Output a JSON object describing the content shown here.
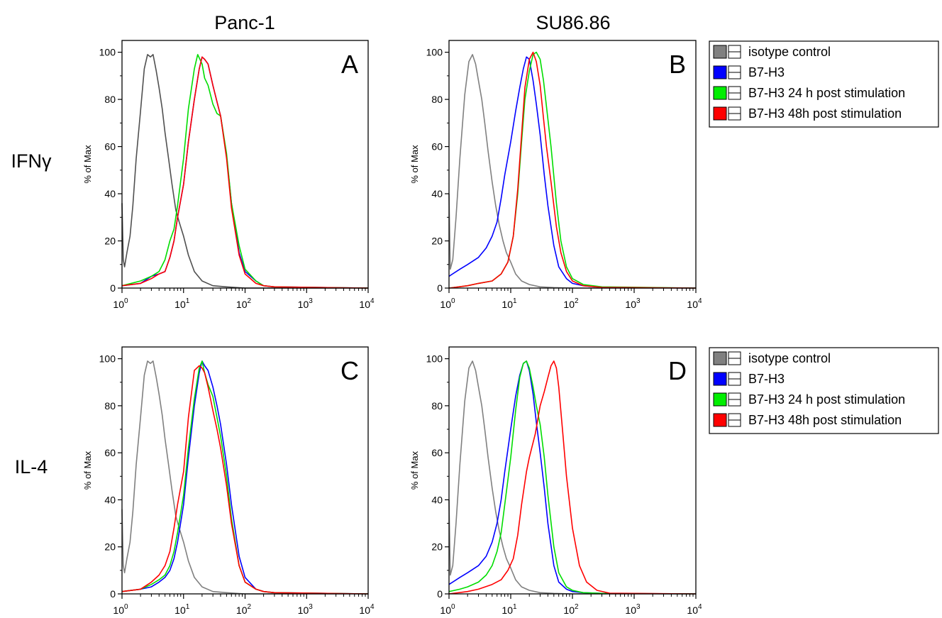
{
  "column_headers": [
    "Panc-1",
    "SU86.86"
  ],
  "row_headers": [
    "IFNγ",
    "IL-4"
  ],
  "legend": {
    "entries": [
      "isotype control",
      "B7-H3",
      "B7-H3 24 h post stimulation",
      "B7-H3 48h post stimulation"
    ],
    "colors": [
      "#808080",
      "#0000ff",
      "#00ee00",
      "#ff0000"
    ]
  },
  "chart_data": [
    {
      "panel": "A",
      "type": "line",
      "column": "Panc-1",
      "row": "IFNγ",
      "ylabel": "% of Max",
      "xscale": "log",
      "xlim": [
        1,
        10000
      ],
      "ylim": [
        0,
        105
      ],
      "yticks": [
        0,
        20,
        40,
        60,
        80,
        100
      ],
      "xticks": [
        {
          "b": "10",
          "e": "0"
        },
        {
          "b": "10",
          "e": "1"
        },
        {
          "b": "10",
          "e": "2"
        },
        {
          "b": "10",
          "e": "3"
        },
        {
          "b": "10",
          "e": "4"
        }
      ],
      "legend": false,
      "series": [
        {
          "name": "isotype control",
          "color": "#505050",
          "x": [
            1,
            1.05,
            1.1,
            1.2,
            1.35,
            1.5,
            1.7,
            2,
            2.3,
            2.6,
            2.9,
            3.2,
            3.6,
            4,
            4.5,
            5,
            5.7,
            6.5,
            7.5,
            8.5,
            10,
            12,
            15,
            20,
            30,
            50,
            100,
            10000
          ],
          "y": [
            36,
            12,
            9,
            15,
            22,
            35,
            55,
            75,
            93,
            99,
            98,
            99,
            92,
            85,
            76,
            66,
            55,
            44,
            33,
            28,
            22,
            14,
            7,
            3,
            1,
            0.5,
            0,
            0
          ]
        },
        {
          "name": "B7-H3",
          "color": "#0000ff",
          "x": [
            1,
            2,
            3,
            4,
            5,
            6,
            7,
            8,
            10,
            12,
            15,
            18,
            20,
            22,
            25,
            30,
            35,
            40,
            50,
            60,
            80,
            100,
            150,
            200,
            300,
            10000
          ],
          "y": [
            1,
            2,
            5,
            6,
            7,
            13,
            20,
            30,
            44,
            62,
            80,
            93,
            98,
            97,
            95,
            86,
            79,
            73,
            56,
            36,
            15,
            7,
            3,
            1,
            0.5,
            0
          ]
        },
        {
          "name": "B7-H3 24 h post stimulation",
          "color": "#00dd00",
          "x": [
            1,
            2,
            3,
            4,
            5,
            6,
            7,
            8,
            10,
            12,
            15,
            17,
            20,
            22,
            25,
            30,
            35,
            40,
            50,
            60,
            80,
            100,
            150,
            200,
            300,
            10000
          ],
          "y": [
            1,
            3,
            5,
            7,
            12,
            20,
            25,
            35,
            55,
            76,
            93,
            99,
            95,
            89,
            86,
            78,
            74,
            73,
            57,
            36,
            18,
            8,
            3,
            1,
            0.5,
            0
          ]
        },
        {
          "name": "B7-H3 48h post stimulation",
          "color": "#ff0000",
          "x": [
            1,
            2,
            3,
            4,
            5,
            6,
            7,
            8,
            10,
            12,
            15,
            18,
            20,
            22,
            25,
            30,
            35,
            40,
            50,
            60,
            80,
            100,
            150,
            200,
            300,
            10000
          ],
          "y": [
            1,
            2,
            4,
            6,
            7,
            13,
            20,
            30,
            44,
            62,
            80,
            93,
            98,
            97,
            95,
            86,
            79,
            73,
            55,
            34,
            14,
            6,
            2,
            1,
            0.5,
            0
          ]
        }
      ]
    },
    {
      "panel": "B",
      "type": "line",
      "column": "SU86.86",
      "row": "IFNγ",
      "ylabel": "% of Max",
      "xscale": "log",
      "xlim": [
        1,
        10000
      ],
      "ylim": [
        0,
        105
      ],
      "yticks": [
        0,
        20,
        40,
        60,
        80,
        100
      ],
      "xticks": [
        {
          "b": "10",
          "e": "0"
        },
        {
          "b": "10",
          "e": "1"
        },
        {
          "b": "10",
          "e": "2"
        },
        {
          "b": "10",
          "e": "3"
        },
        {
          "b": "10",
          "e": "4"
        }
      ],
      "legend": true,
      "series": [
        {
          "name": "isotype control",
          "color": "#808080",
          "x": [
            1,
            1.05,
            1.15,
            1.3,
            1.5,
            1.8,
            2.1,
            2.4,
            2.7,
            3,
            3.4,
            3.8,
            4.3,
            5,
            5.7,
            6.5,
            7.5,
            8.5,
            10,
            12,
            15,
            20,
            30,
            50,
            100,
            10000
          ],
          "y": [
            40,
            8,
            12,
            30,
            55,
            82,
            96,
            99,
            95,
            88,
            80,
            70,
            58,
            45,
            35,
            27,
            20,
            15,
            11,
            6,
            3,
            1.5,
            0.5,
            0.2,
            0,
            0
          ]
        },
        {
          "name": "B7-H3",
          "color": "#0000ff",
          "x": [
            1,
            1.5,
            2,
            3,
            4,
            5,
            6,
            7,
            8,
            10,
            12,
            14,
            16,
            18,
            20,
            23,
            26,
            30,
            35,
            40,
            50,
            60,
            80,
            100,
            150,
            300,
            10000
          ],
          "y": [
            5,
            8,
            10,
            13,
            17,
            22,
            28,
            38,
            48,
            62,
            75,
            85,
            93,
            98,
            97,
            88,
            78,
            65,
            48,
            35,
            18,
            9,
            4,
            2,
            1,
            0.3,
            0
          ]
        },
        {
          "name": "B7-H3 24 h post stimulation",
          "color": "#00dd00",
          "x": [
            1,
            2,
            3,
            5,
            7,
            9,
            11,
            13,
            15,
            17,
            20,
            23,
            26,
            30,
            34,
            38,
            45,
            55,
            65,
            80,
            100,
            150,
            300,
            10000
          ],
          "y": [
            0,
            1,
            2,
            3,
            6,
            11,
            22,
            40,
            62,
            80,
            92,
            99,
            100,
            97,
            88,
            77,
            60,
            36,
            20,
            9,
            4,
            1.5,
            0.5,
            0
          ]
        },
        {
          "name": "B7-H3 48h post stimulation",
          "color": "#ff0000",
          "x": [
            1,
            2,
            3,
            5,
            7,
            9,
            11,
            13,
            15,
            17,
            20,
            23,
            26,
            30,
            34,
            38,
            45,
            55,
            65,
            80,
            100,
            150,
            300,
            10000
          ],
          "y": [
            0,
            1,
            2,
            3,
            6,
            11,
            22,
            42,
            65,
            85,
            97,
            100,
            96,
            86,
            72,
            60,
            45,
            26,
            15,
            7,
            3,
            1,
            0.3,
            0
          ]
        }
      ]
    },
    {
      "panel": "C",
      "type": "line",
      "column": "Panc-1",
      "row": "IL-4",
      "ylabel": "% of Max",
      "xscale": "log",
      "xlim": [
        1,
        10000
      ],
      "ylim": [
        0,
        105
      ],
      "yticks": [
        0,
        20,
        40,
        60,
        80,
        100
      ],
      "xticks": [
        {
          "b": "10",
          "e": "0"
        },
        {
          "b": "10",
          "e": "1"
        },
        {
          "b": "10",
          "e": "2"
        },
        {
          "b": "10",
          "e": "3"
        },
        {
          "b": "10",
          "e": "4"
        }
      ],
      "legend": false,
      "series": [
        {
          "name": "isotype control",
          "color": "#808080",
          "x": [
            1,
            1.05,
            1.1,
            1.2,
            1.35,
            1.5,
            1.7,
            2,
            2.3,
            2.6,
            2.9,
            3.2,
            3.6,
            4,
            4.5,
            5,
            5.7,
            6.5,
            7.5,
            8.5,
            10,
            12,
            15,
            20,
            30,
            50,
            100,
            10000
          ],
          "y": [
            36,
            12,
            9,
            15,
            22,
            35,
            55,
            75,
            93,
            99,
            98,
            99,
            92,
            85,
            76,
            66,
            55,
            44,
            33,
            28,
            22,
            14,
            7,
            3,
            1,
            0.5,
            0,
            0
          ]
        },
        {
          "name": "B7-H3",
          "color": "#0000ff",
          "x": [
            1,
            2,
            3,
            4,
            5,
            6,
            7,
            8,
            10,
            12,
            15,
            18,
            20,
            22,
            25,
            30,
            35,
            40,
            50,
            60,
            80,
            100,
            150,
            200,
            300,
            10000
          ],
          "y": [
            1,
            2,
            3,
            5,
            7,
            10,
            15,
            22,
            38,
            58,
            80,
            94,
            99,
            97,
            95,
            88,
            80,
            72,
            55,
            38,
            16,
            7,
            2,
            1,
            0.5,
            0
          ]
        },
        {
          "name": "B7-H3 24 h post stimulation",
          "color": "#00dd00",
          "x": [
            1,
            2,
            3,
            4,
            5,
            6,
            7,
            8,
            10,
            12,
            15,
            18,
            20,
            22,
            25,
            30,
            35,
            40,
            50,
            60,
            80,
            100,
            150,
            200,
            300,
            10000
          ],
          "y": [
            1,
            2,
            4,
            6,
            8,
            12,
            18,
            26,
            42,
            62,
            83,
            96,
            99,
            94,
            89,
            84,
            75,
            67,
            50,
            32,
            12,
            5,
            2,
            1,
            0.5,
            0
          ]
        },
        {
          "name": "B7-H3 48h post stimulation",
          "color": "#ff0000",
          "x": [
            1,
            2,
            3,
            4,
            5,
            6,
            7,
            8,
            10,
            12,
            15,
            18,
            20,
            22,
            25,
            30,
            35,
            40,
            50,
            60,
            80,
            100,
            150,
            200,
            300,
            10000
          ],
          "y": [
            1,
            2,
            5,
            8,
            12,
            18,
            28,
            38,
            52,
            75,
            95,
            97,
            96,
            94,
            88,
            78,
            70,
            62,
            46,
            30,
            12,
            5,
            2,
            1,
            0.5,
            0
          ]
        }
      ]
    },
    {
      "panel": "D",
      "type": "line",
      "column": "SU86.86",
      "row": "IL-4",
      "ylabel": "% of Max",
      "xscale": "log",
      "xlim": [
        1,
        10000
      ],
      "ylim": [
        0,
        105
      ],
      "yticks": [
        0,
        20,
        40,
        60,
        80,
        100
      ],
      "xticks": [
        {
          "b": "10",
          "e": "0"
        },
        {
          "b": "10",
          "e": "1"
        },
        {
          "b": "10",
          "e": "2"
        },
        {
          "b": "10",
          "e": "3"
        },
        {
          "b": "10",
          "e": "4"
        }
      ],
      "legend": true,
      "series": [
        {
          "name": "isotype control",
          "color": "#808080",
          "x": [
            1,
            1.05,
            1.15,
            1.3,
            1.5,
            1.8,
            2.1,
            2.4,
            2.7,
            3,
            3.4,
            3.8,
            4.3,
            5,
            5.7,
            6.5,
            7.5,
            8.5,
            10,
            12,
            15,
            20,
            30,
            50,
            100,
            10000
          ],
          "y": [
            40,
            8,
            12,
            30,
            55,
            82,
            96,
            99,
            95,
            88,
            80,
            70,
            58,
            45,
            35,
            27,
            20,
            15,
            11,
            6,
            3,
            1.5,
            0.5,
            0.2,
            0,
            0
          ]
        },
        {
          "name": "B7-H3",
          "color": "#0000ff",
          "x": [
            1,
            1.5,
            2,
            3,
            4,
            5,
            6,
            7,
            8,
            10,
            12,
            14,
            16,
            18,
            20,
            23,
            26,
            30,
            35,
            40,
            50,
            60,
            80,
            100,
            150,
            300,
            10000
          ],
          "y": [
            4,
            7,
            9,
            12,
            16,
            22,
            30,
            40,
            52,
            70,
            84,
            93,
            98,
            99,
            95,
            85,
            73,
            60,
            45,
            30,
            12,
            5,
            2,
            1,
            0.5,
            0.2,
            0
          ]
        },
        {
          "name": "B7-H3 24 h post stimulation",
          "color": "#00dd00",
          "x": [
            1,
            1.5,
            2,
            3,
            4,
            5,
            6,
            7,
            8,
            10,
            12,
            14,
            16,
            18,
            20,
            23,
            26,
            30,
            35,
            40,
            50,
            60,
            80,
            100,
            150,
            300,
            10000
          ],
          "y": [
            1,
            2,
            3,
            5,
            8,
            12,
            18,
            26,
            38,
            58,
            78,
            92,
            98,
            99,
            96,
            88,
            80,
            72,
            58,
            42,
            20,
            9,
            3,
            1.5,
            0.5,
            0.2,
            0
          ]
        },
        {
          "name": "B7-H3 48h post stimulation",
          "color": "#ff0000",
          "x": [
            1,
            2,
            3,
            5,
            7,
            9,
            11,
            13,
            15,
            18,
            20,
            25,
            30,
            35,
            40,
            45,
            50,
            55,
            60,
            70,
            80,
            100,
            130,
            170,
            250,
            400,
            10000
          ],
          "y": [
            0,
            1,
            2,
            4,
            6,
            10,
            15,
            25,
            38,
            52,
            58,
            68,
            80,
            86,
            92,
            97,
            99,
            96,
            88,
            68,
            50,
            28,
            12,
            5,
            1.5,
            0.3,
            0
          ]
        }
      ]
    }
  ]
}
